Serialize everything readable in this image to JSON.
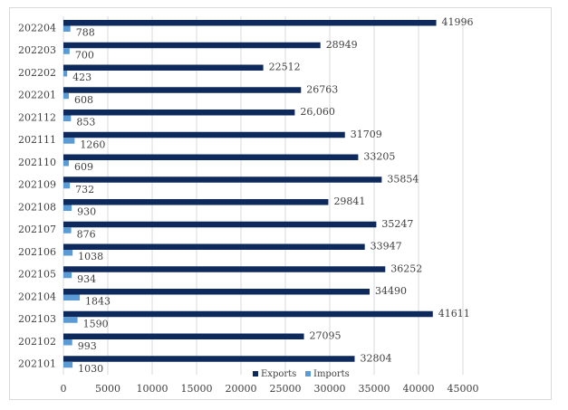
{
  "chart_data": {
    "type": "bar",
    "orientation": "horizontal",
    "title": "",
    "xlabel": "",
    "ylabel": "",
    "categories": [
      "202204",
      "202203",
      "202202",
      "202201",
      "202112",
      "202111",
      "202110",
      "202109",
      "202108",
      "202107",
      "202106",
      "202105",
      "202104",
      "202103",
      "202102",
      "202101"
    ],
    "series": [
      {
        "name": "Exports",
        "color": "#0e2a5c",
        "values": [
          41996,
          28949,
          22512,
          26763,
          26060,
          31709,
          33205,
          35854,
          29841,
          35247,
          33947,
          36252,
          34490,
          41611,
          27095,
          32804
        ],
        "labels": [
          "41996",
          "28949",
          "22512",
          "26763",
          "26,060",
          "31709",
          "33205",
          "35854",
          "29841",
          "35247",
          "33947",
          "36252",
          "34490",
          "41611",
          "27095",
          "32804"
        ]
      },
      {
        "name": "Imports",
        "color": "#5b9bd5",
        "values": [
          788,
          700,
          423,
          608,
          853,
          1260,
          609,
          732,
          930,
          876,
          1038,
          934,
          1843,
          1590,
          993,
          1030
        ],
        "labels": [
          "788",
          "700",
          "423",
          "608",
          "853",
          "1260",
          "609",
          "732",
          "930",
          "876",
          "1038",
          "934",
          "1843",
          "1590",
          "993",
          "1030"
        ]
      }
    ],
    "xlim": [
      0,
      45000
    ],
    "xticks": [
      "0",
      "5000",
      "10000",
      "15000",
      "20000",
      "25000",
      "30000",
      "35000",
      "40000",
      "45000"
    ],
    "grid": "vertical",
    "legend_position": "bottom"
  }
}
